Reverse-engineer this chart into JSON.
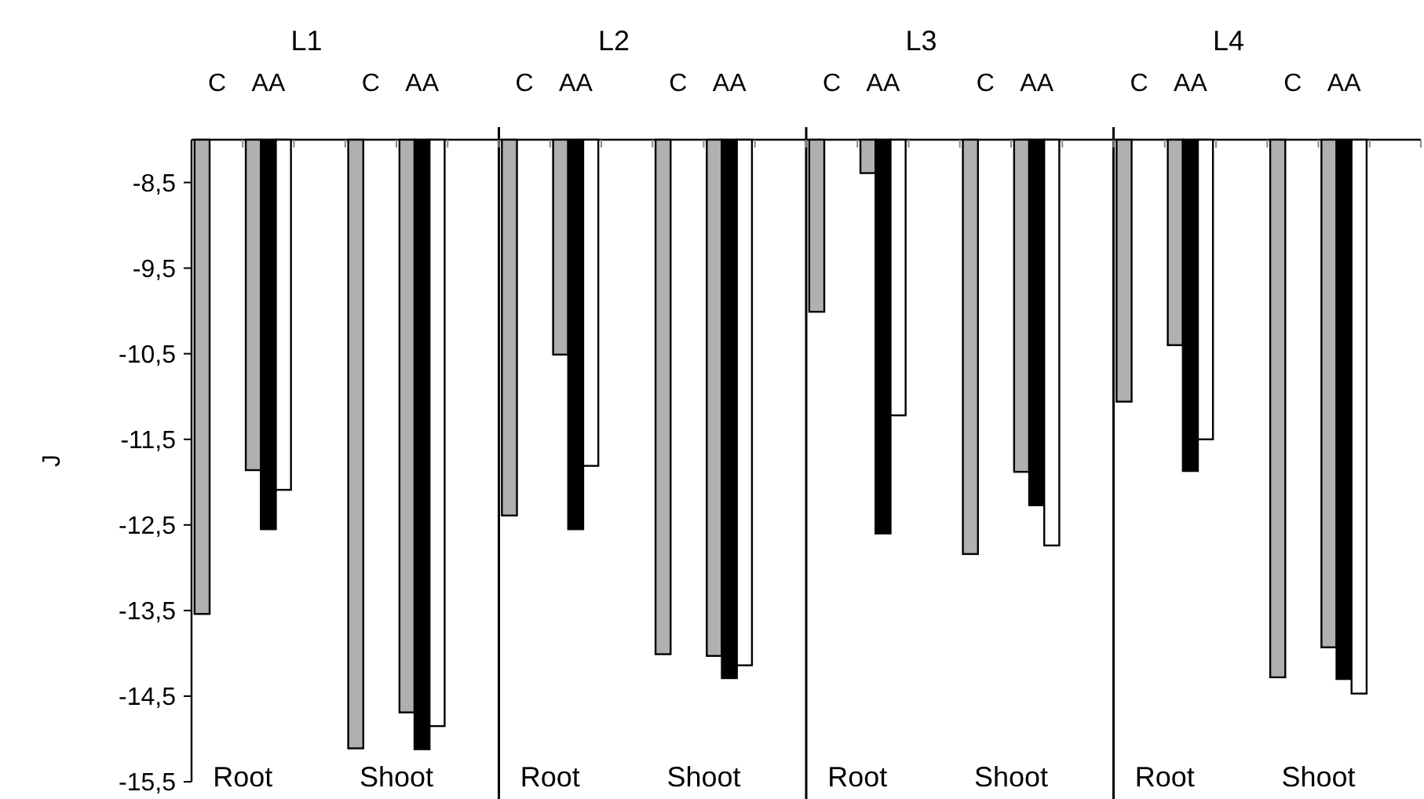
{
  "chart_data": {
    "type": "bar",
    "ylabel": "J",
    "categories": [
      "C",
      "AA",
      null,
      "C",
      "AA",
      null,
      "C",
      "AA",
      null,
      "C",
      "AA",
      null,
      "C",
      "AA",
      null,
      "C",
      "AA",
      null,
      "C",
      "AA",
      null,
      "C",
      "AA",
      null
    ],
    "series": [
      {
        "color": "#b0b0b0",
        "values": [
          -13.54,
          -11.86,
          null,
          -15.11,
          -14.69,
          null,
          -12.39,
          -10.51,
          null,
          -14.01,
          -14.03,
          null,
          -10.01,
          -8.39,
          null,
          -12.84,
          -11.88,
          null,
          -11.06,
          -10.4,
          null,
          -14.28,
          -13.93,
          null
        ]
      },
      {
        "color": "#000000",
        "values": [
          null,
          -12.55,
          null,
          null,
          -15.12,
          null,
          null,
          -12.55,
          null,
          null,
          -14.29,
          null,
          null,
          -12.6,
          null,
          null,
          -12.27,
          null,
          null,
          -11.87,
          null,
          null,
          -14.3,
          null
        ]
      },
      {
        "color": "#ffffff",
        "values": [
          null,
          -12.09,
          null,
          null,
          -14.85,
          null,
          null,
          -11.81,
          null,
          null,
          -14.14,
          null,
          null,
          -11.22,
          null,
          null,
          -12.74,
          null,
          null,
          -11.5,
          null,
          null,
          -14.47,
          null
        ]
      }
    ],
    "ylim": [
      -15.5,
      -8
    ],
    "yticks": [
      {
        "value": -8.5,
        "label": "-8,5"
      },
      {
        "value": -9.5,
        "label": "-9,5"
      },
      {
        "value": -10.5,
        "label": "-10,5"
      },
      {
        "value": -11.5,
        "label": "-11,5"
      },
      {
        "value": -12.5,
        "label": "-12,5"
      },
      {
        "value": -13.5,
        "label": "-13,5"
      },
      {
        "value": -14.5,
        "label": "-14,5"
      },
      {
        "value": -15.5,
        "label": "-15,5"
      }
    ],
    "annotations": [
      "L1",
      "L2",
      "L3",
      "L4",
      "Root",
      "Shoot",
      "Root",
      "Shoot",
      "Root",
      "Shoot",
      "Root",
      "Shoot"
    ]
  }
}
